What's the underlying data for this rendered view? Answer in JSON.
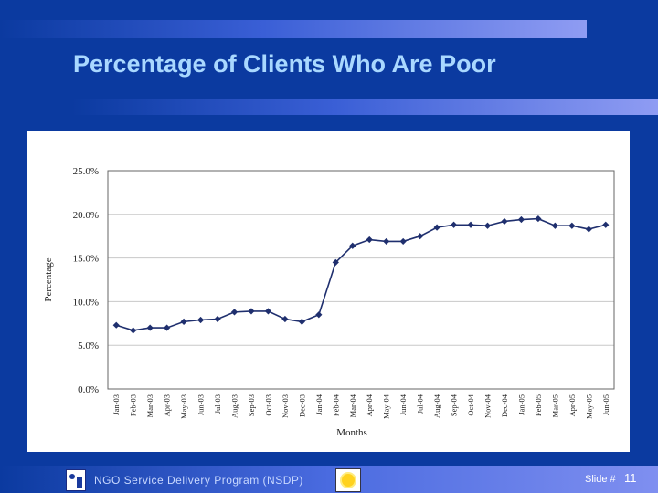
{
  "slide": {
    "title": "Percentage of Clients Who Are Poor",
    "footer_text": "NGO  Service  Delivery  Program  (NSDP)",
    "slide_label": "Slide #",
    "slide_number": "11",
    "colors": {
      "background": "#0b3aa0",
      "title": "#a9d8ff",
      "series": "#1f2f6e"
    },
    "icons": [
      "nsdp-logo-icon",
      "sun-logo-icon"
    ]
  },
  "chart_data": {
    "type": "line",
    "title": "",
    "xlabel": "Months",
    "ylabel": "Percentage",
    "ylim": [
      0,
      25
    ],
    "yticks": [
      "0.0%",
      "5.0%",
      "10.0%",
      "15.0%",
      "20.0%",
      "25.0%"
    ],
    "grid": true,
    "categories": [
      "Jan-03",
      "Feb-03",
      "Mar-03",
      "Apr-03",
      "May-03",
      "Jun-03",
      "Jul-03",
      "Aug-03",
      "Sep-03",
      "Oct-03",
      "Nov-03",
      "Dec-03",
      "Jan-04",
      "Feb-04",
      "Mar-04",
      "Apr-04",
      "May-04",
      "Jun-04",
      "Jul-04",
      "Aug-04",
      "Sep-04",
      "Oct-04",
      "Nov-04",
      "Dec-04",
      "Jan-05",
      "Feb-05",
      "Mar-05",
      "Apr-05",
      "May-05",
      "Jun-05"
    ],
    "series": [
      {
        "values": [
          7.3,
          6.7,
          7.0,
          7.0,
          7.7,
          7.9,
          8.0,
          8.8,
          8.9,
          8.9,
          8.0,
          7.7,
          8.5,
          14.5,
          16.4,
          17.1,
          16.9,
          16.9,
          17.5,
          18.5,
          18.8,
          18.8,
          18.7,
          19.2,
          19.4,
          19.5,
          18.7,
          18.7,
          18.3,
          18.8
        ]
      }
    ]
  }
}
